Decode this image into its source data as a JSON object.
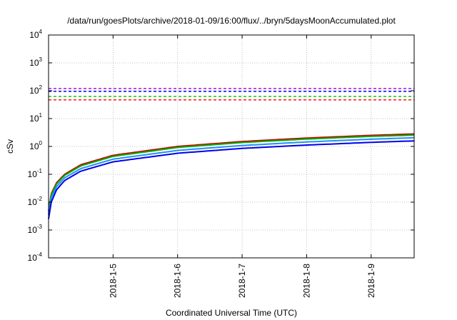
{
  "chart_data": {
    "type": "line",
    "title": "/data/run/goesPlots/archive/2018-01-09/16:00/flux/../bryn/5daysMoonAccumulated.plot",
    "xlabel": "Coordinated Universal Time (UTC)",
    "ylabel": "cSv",
    "yscale": "log",
    "ylim": [
      0.0001,
      10000
    ],
    "xlim": [
      "2018-01-04 00:00",
      "2018-01-09 16:00"
    ],
    "grid": true,
    "y_ticks": [
      {
        "value": 0.0001,
        "base": "10",
        "exp": "-4"
      },
      {
        "value": 0.001,
        "base": "10",
        "exp": "-3"
      },
      {
        "value": 0.01,
        "base": "10",
        "exp": "-2"
      },
      {
        "value": 0.1,
        "base": "10",
        "exp": "-1"
      },
      {
        "value": 1,
        "base": "10",
        "exp": "0"
      },
      {
        "value": 10,
        "base": "10",
        "exp": "1"
      },
      {
        "value": 100,
        "base": "10",
        "exp": "2"
      },
      {
        "value": 1000,
        "base": "10",
        "exp": "3"
      },
      {
        "value": 10000,
        "base": "10",
        "exp": "4"
      }
    ],
    "x_ticks": [
      {
        "value": "2018-01-05 00:00",
        "label": "2018-1-5"
      },
      {
        "value": "2018-01-06 00:00",
        "label": "2018-1-6"
      },
      {
        "value": "2018-01-07 00:00",
        "label": "2018-1-7"
      },
      {
        "value": "2018-01-08 00:00",
        "label": "2018-1-8"
      },
      {
        "value": "2018-01-09 00:00",
        "label": "2018-1-9"
      }
    ],
    "thresholds": [
      {
        "value": 120,
        "color": "#9400d3"
      },
      {
        "value": 95,
        "color": "#0000ff"
      },
      {
        "value": 62,
        "color": "#00c000"
      },
      {
        "value": 47,
        "color": "#ff0000"
      }
    ],
    "series": [
      {
        "color": "#cc0000",
        "x": [
          "2018-01-04 00:00",
          "2018-01-04 01:00",
          "2018-01-04 03:00",
          "2018-01-04 06:00",
          "2018-01-04 12:00",
          "2018-01-05 00:00",
          "2018-01-06 00:00",
          "2018-01-07 00:00",
          "2018-01-08 00:00",
          "2018-01-09 00:00",
          "2018-01-09 16:00"
        ],
        "y": [
          0.005,
          0.02,
          0.05,
          0.1,
          0.22,
          0.48,
          1.0,
          1.5,
          2.0,
          2.5,
          2.8
        ]
      },
      {
        "color": "#00b000",
        "x": [
          "2018-01-04 00:00",
          "2018-01-04 01:00",
          "2018-01-04 03:00",
          "2018-01-04 06:00",
          "2018-01-04 12:00",
          "2018-01-05 00:00",
          "2018-01-06 00:00",
          "2018-01-07 00:00",
          "2018-01-08 00:00",
          "2018-01-09 00:00",
          "2018-01-09 16:00"
        ],
        "y": [
          0.0045,
          0.018,
          0.045,
          0.092,
          0.2,
          0.44,
          0.92,
          1.38,
          1.84,
          2.3,
          2.55
        ]
      },
      {
        "color": "#1e90ff",
        "x": [
          "2018-01-04 00:00",
          "2018-01-04 01:00",
          "2018-01-04 03:00",
          "2018-01-04 06:00",
          "2018-01-04 12:00",
          "2018-01-05 00:00",
          "2018-01-06 00:00",
          "2018-01-07 00:00",
          "2018-01-08 00:00",
          "2018-01-09 00:00",
          "2018-01-09 16:00"
        ],
        "y": [
          0.0035,
          0.014,
          0.036,
          0.075,
          0.16,
          0.35,
          0.72,
          1.08,
          1.45,
          1.82,
          2.05
        ]
      },
      {
        "color": "#0000ee",
        "x": [
          "2018-01-04 00:00",
          "2018-01-04 01:00",
          "2018-01-04 03:00",
          "2018-01-04 06:00",
          "2018-01-04 12:00",
          "2018-01-05 00:00",
          "2018-01-06 00:00",
          "2018-01-07 00:00",
          "2018-01-08 00:00",
          "2018-01-09 00:00",
          "2018-01-09 16:00"
        ],
        "y": [
          0.0025,
          0.01,
          0.028,
          0.06,
          0.13,
          0.28,
          0.57,
          0.85,
          1.12,
          1.4,
          1.58
        ]
      }
    ]
  }
}
